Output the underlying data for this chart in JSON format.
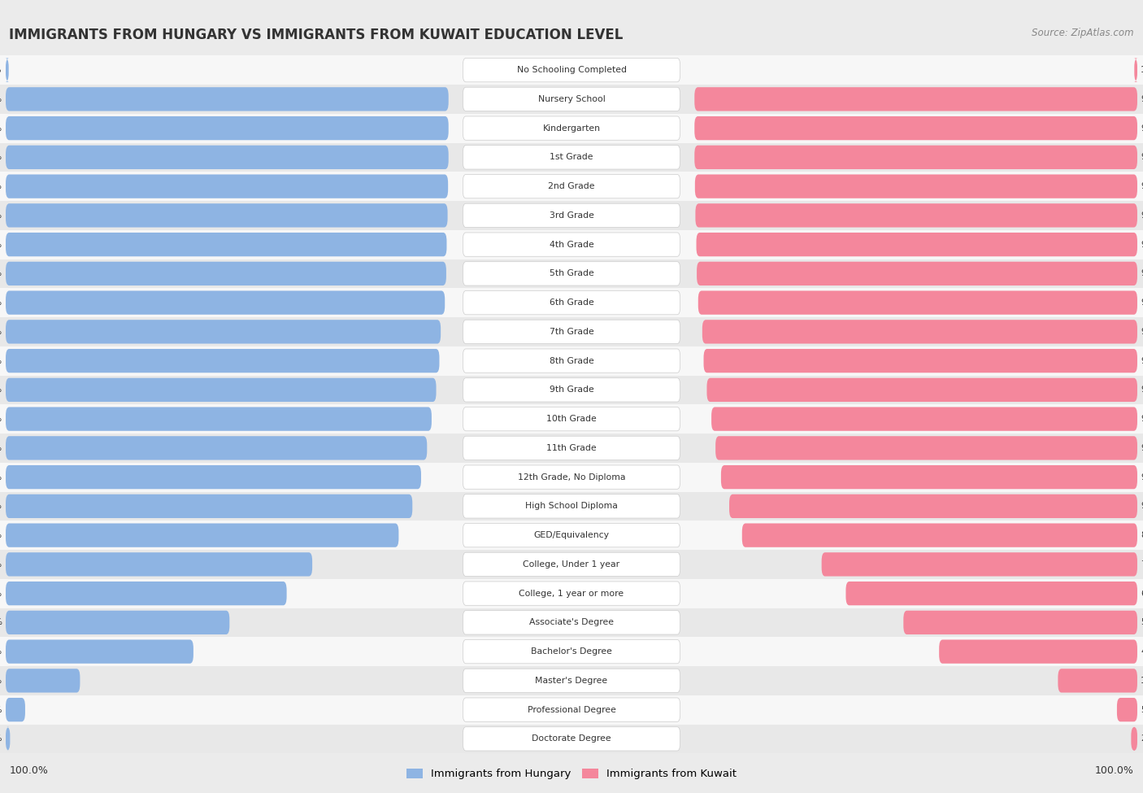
{
  "title": "IMMIGRANTS FROM HUNGARY VS IMMIGRANTS FROM KUWAIT EDUCATION LEVEL",
  "source": "Source: ZipAtlas.com",
  "categories": [
    "No Schooling Completed",
    "Nursery School",
    "Kindergarten",
    "1st Grade",
    "2nd Grade",
    "3rd Grade",
    "4th Grade",
    "5th Grade",
    "6th Grade",
    "7th Grade",
    "8th Grade",
    "9th Grade",
    "10th Grade",
    "11th Grade",
    "12th Grade, No Diploma",
    "High School Diploma",
    "GED/Equivalency",
    "College, Under 1 year",
    "College, 1 year or more",
    "Associate's Degree",
    "Bachelor's Degree",
    "Master's Degree",
    "Professional Degree",
    "Doctorate Degree"
  ],
  "hungary_values": [
    1.9,
    98.1,
    98.1,
    98.1,
    98.0,
    97.9,
    97.7,
    97.6,
    97.3,
    96.4,
    96.1,
    95.4,
    94.4,
    93.4,
    92.1,
    90.2,
    87.2,
    68.3,
    62.7,
    50.2,
    42.3,
    17.5,
    5.5,
    2.2
  ],
  "kuwait_values": [
    1.9,
    98.1,
    98.1,
    98.1,
    98.0,
    97.9,
    97.7,
    97.6,
    97.3,
    96.4,
    96.1,
    95.4,
    94.4,
    93.5,
    92.3,
    90.5,
    87.7,
    70.3,
    65.0,
    52.4,
    44.6,
    18.6,
    5.7,
    2.6
  ],
  "hungary_color": "#8eb4e3",
  "kuwait_color": "#f4879c",
  "bg_color": "#ebebeb",
  "row_bg_light": "#f7f7f7",
  "row_bg_dark": "#e8e8e8",
  "legend_hungary": "Immigrants from Hungary",
  "legend_kuwait": "Immigrants from Kuwait",
  "axis_label_left": "100.0%",
  "axis_label_right": "100.0%"
}
